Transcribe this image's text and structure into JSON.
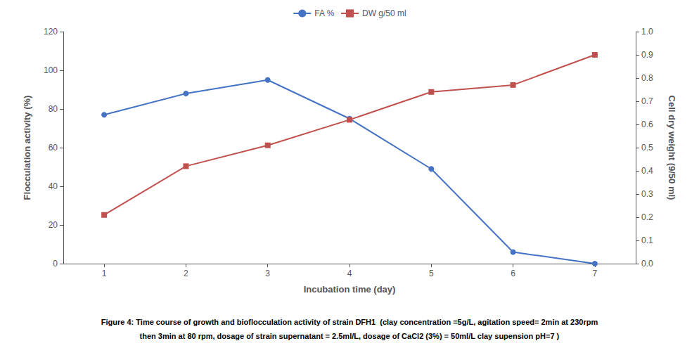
{
  "chart_data": {
    "type": "line",
    "xlabel": "Incubation time (day)",
    "ylabel": "Flocculation activity (%)",
    "y2label": "Cell dry weight (9/50 ml)",
    "annotations": [
      "Figure 4: Time course of growth and bioflocculation activity of strain DFH1  (clay concentration =5g/L, agitation speed= 2min at 230rpm",
      "then 3min at 80 rpm, dosage of strain supernatant = 2.5ml/L, dosage of CaCl2 (3%) = 50ml/L clay supension pH=7 )"
    ],
    "x": [
      1,
      2,
      3,
      4,
      5,
      6,
      7
    ],
    "series": [
      {
        "name": "FA %",
        "color": "#4472C4",
        "marker": "circle",
        "values": [
          77,
          88,
          95,
          75,
          49,
          6,
          0
        ]
      },
      {
        "name": "DW g/50 ml",
        "color": "#C0504D",
        "marker": "square",
        "axis": "y2",
        "values": [
          0.21,
          0.42,
          0.51,
          0.62,
          0.74,
          0.77,
          0.9
        ]
      }
    ],
    "xlim": [
      0.5,
      7.5
    ],
    "xticks": [
      1,
      2,
      3,
      4,
      5,
      6,
      7
    ],
    "ylim": [
      0,
      120
    ],
    "yticks": [
      0,
      20,
      40,
      60,
      80,
      100,
      120
    ],
    "y2lim": [
      0,
      1.0
    ],
    "y2ticks": [
      {
        "value": 0,
        "label": "0.0"
      },
      0.1,
      0.2,
      0.3,
      0.4,
      0.5,
      0.6,
      0.7,
      0.8,
      0.9,
      {
        "value": 1.0,
        "label": "1.0"
      }
    ],
    "grid": false,
    "legend": "top"
  }
}
